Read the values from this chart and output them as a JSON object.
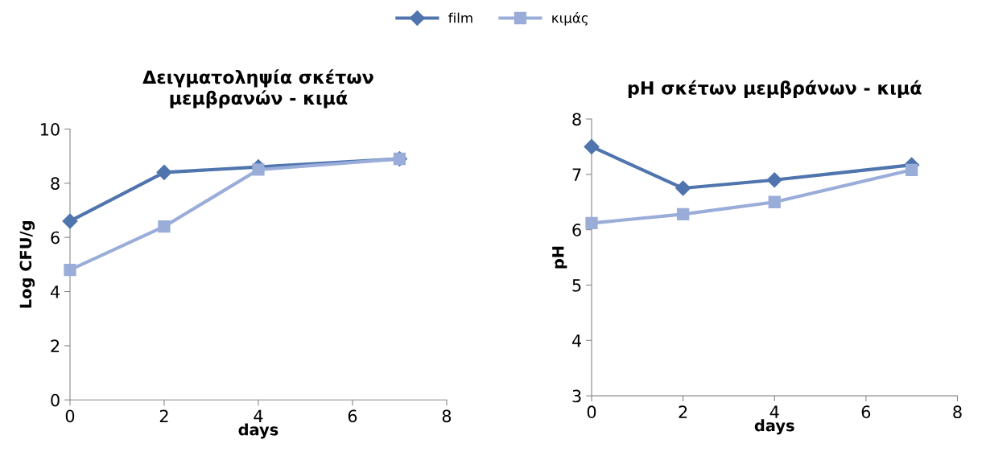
{
  "chart_data": [
    {
      "type": "line",
      "title": "Δειγματοληψία σκέτων\nμεμβρανών - κιμά",
      "xlabel": "days",
      "ylabel": "Log CFU/g",
      "xlim": [
        0,
        8
      ],
      "xticks": [
        0,
        2,
        4,
        6,
        8
      ],
      "ylim": [
        0,
        10
      ],
      "yticks": [
        0,
        2,
        4,
        6,
        8,
        10
      ],
      "legend": "top",
      "grid": false,
      "series": [
        {
          "name": "film",
          "color": "#4f74ae",
          "marker": "diamond",
          "x": [
            0,
            2,
            4,
            7
          ],
          "values": [
            6.6,
            8.4,
            8.6,
            8.9
          ]
        },
        {
          "name": "κιμάς",
          "color": "#9aadd9",
          "marker": "square",
          "x": [
            0,
            2,
            4,
            7
          ],
          "values": [
            4.8,
            6.4,
            8.5,
            8.9
          ]
        }
      ]
    },
    {
      "type": "line",
      "title": "pH σκέτων μεμβράνων - κιμά",
      "xlabel": "days",
      "ylabel": "pH",
      "xlim": [
        0,
        8
      ],
      "xticks": [
        0,
        2,
        4,
        6,
        8
      ],
      "ylim": [
        3,
        8
      ],
      "yticks": [
        3,
        4,
        5,
        6,
        7,
        8
      ],
      "grid": false,
      "series": [
        {
          "color": "#4f74ae",
          "marker": "diamond",
          "x": [
            0,
            2,
            4,
            7
          ],
          "values": [
            7.5,
            6.75,
            6.9,
            7.17
          ]
        },
        {
          "color": "#9aadd9",
          "marker": "square",
          "x": [
            0,
            2,
            4,
            7
          ],
          "values": [
            6.12,
            6.28,
            6.5,
            7.08
          ]
        }
      ]
    }
  ]
}
